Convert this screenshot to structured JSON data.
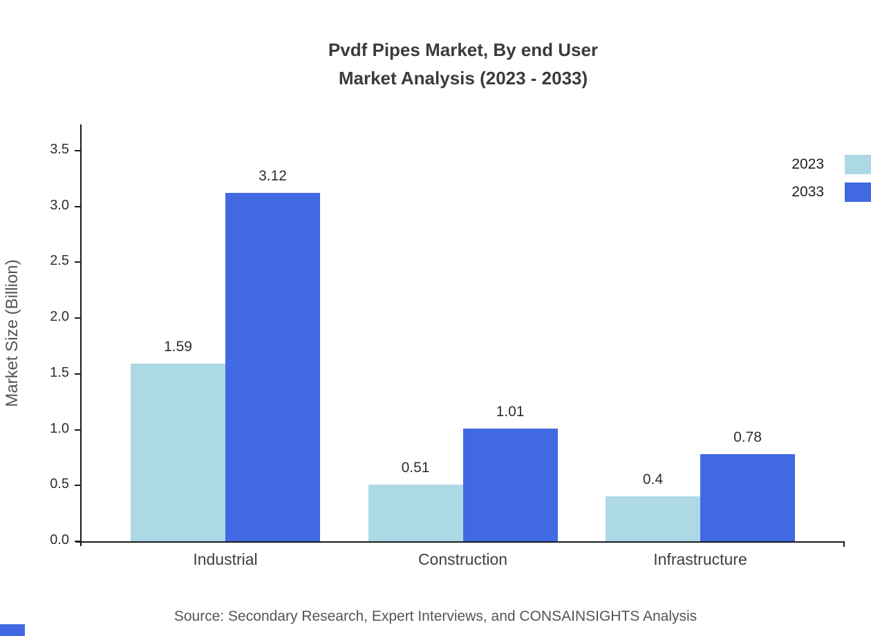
{
  "title": {
    "line1": "Pvdf Pipes Market, By end User",
    "line2": "Market Analysis (2023 - 2033)"
  },
  "source": "Source: Secondary Research, Expert Interviews, and CONSAINSIGHTS Analysis",
  "colors": {
    "series_2023": "#ADD8E6",
    "series_2033": "#4169E1",
    "axis": "#1a1a1a",
    "corner_accent": "#4169E1"
  },
  "chart_data": {
    "type": "bar",
    "title": "Pvdf Pipes Market, By end User Market Analysis (2023 - 2033)",
    "categories": [
      "Industrial",
      "Construction",
      "Infrastructure"
    ],
    "series": [
      {
        "name": "2023",
        "color": "#ADD8E6",
        "values": [
          1.59,
          0.51,
          0.4
        ]
      },
      {
        "name": "2033",
        "color": "#4169E1",
        "values": [
          3.12,
          1.01,
          0.78
        ]
      }
    ],
    "value_labels": {
      "2023": [
        "1.59",
        "0.51",
        "0.4"
      ],
      "2033": [
        "3.12",
        "1.01",
        "0.78"
      ]
    },
    "xlabel": "",
    "ylabel": "Market Size (Billion)",
    "ylim": [
      0,
      3.5
    ],
    "ytick_step": 0.5,
    "ytick_labels": [
      "0.0",
      "0.5",
      "1.0",
      "1.5",
      "2.0",
      "2.5",
      "3.0",
      "3.5"
    ],
    "grid": false,
    "legend_position": "top-right"
  }
}
